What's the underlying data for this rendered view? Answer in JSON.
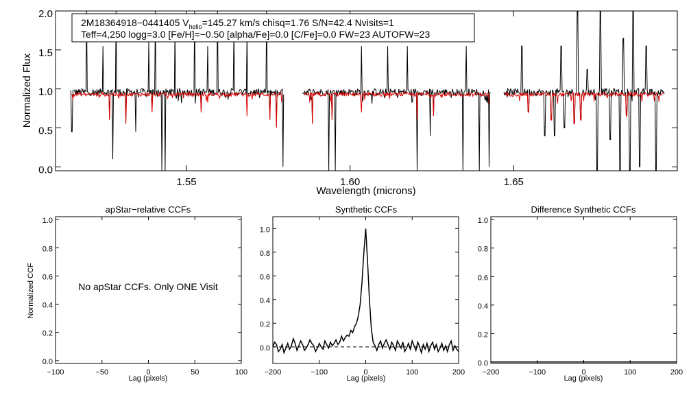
{
  "chart_data": [
    {
      "type": "line",
      "id": "spectrum",
      "xlabel": "Wavelength (microns)",
      "ylabel": "Normalized Flux",
      "xlim": [
        1.51,
        1.7
      ],
      "ylim": [
        -0.05,
        2.0
      ],
      "xticks": [
        "1.55",
        "1.60",
        "1.65"
      ],
      "xtick_values": [
        1.55,
        1.6,
        1.65
      ],
      "yticks": [
        "0.0",
        "0.5",
        "1.0",
        "1.5",
        "2.0"
      ],
      "ytick_values": [
        0.0,
        0.5,
        1.0,
        1.5,
        2.0
      ],
      "info": {
        "line1_pre": "2M18364918−0441405  V",
        "line1_sub": "helio",
        "line1_post": "=145.27 km/s  chisq=1.76  S/N=42.4  Nvisits=1",
        "line2": "Teff=4,250 logg=3.0 [Fe/H]=−0.50 [alpha/Fe]=0.0 [C/Fe]=0.0 FW=23 AUTOFW=23"
      },
      "chips": [
        [
          1.5145,
          1.58
        ],
        [
          1.5855,
          1.643
        ],
        [
          1.647,
          1.696
        ]
      ],
      "observed_level": 0.96,
      "model_level": 0.93,
      "series": [
        {
          "color": "#000000"
        },
        {
          "color": "#dd0000"
        }
      ],
      "spikes_up": [
        [
          1.5195,
          2.0
        ],
        [
          1.5245,
          1.55
        ],
        [
          1.5285,
          2.0
        ],
        [
          1.5345,
          2.0
        ],
        [
          1.5385,
          1.6
        ],
        [
          1.5405,
          2.0
        ],
        [
          1.5465,
          1.75
        ],
        [
          1.5525,
          2.0
        ],
        [
          1.5565,
          1.55
        ],
        [
          1.5595,
          2.0
        ],
        [
          1.5645,
          1.75
        ],
        [
          1.5685,
          1.7
        ],
        [
          1.5745,
          2.0
        ],
        [
          1.5935,
          1.55
        ],
        [
          1.6035,
          1.55
        ],
        [
          1.6115,
          1.55
        ],
        [
          1.6175,
          1.55
        ],
        [
          1.6245,
          1.6
        ],
        [
          1.6355,
          1.55
        ],
        [
          1.6525,
          1.55
        ],
        [
          1.6595,
          1.7
        ],
        [
          1.6645,
          1.55
        ],
        [
          1.6695,
          2.0
        ],
        [
          1.6725,
          1.25
        ],
        [
          1.6765,
          2.0
        ],
        [
          1.6835,
          1.65
        ],
        [
          1.6865,
          2.0
        ],
        [
          1.6905,
          1.55
        ],
        [
          1.6935,
          1.6
        ]
      ],
      "spikes_down": [
        [
          1.515,
          0.45
        ],
        [
          1.5275,
          0.1
        ],
        [
          1.5345,
          0.45
        ],
        [
          1.5425,
          -0.05
        ],
        [
          1.5435,
          -0.05
        ],
        [
          1.5795,
          0.0
        ],
        [
          1.5935,
          -0.05
        ],
        [
          1.5955,
          -0.05
        ],
        [
          1.6205,
          -0.05
        ],
        [
          1.6245,
          0.4
        ],
        [
          1.6345,
          -0.05
        ],
        [
          1.6395,
          -0.05
        ],
        [
          1.6425,
          0.0
        ],
        [
          1.6595,
          0.4
        ],
        [
          1.6625,
          0.4
        ],
        [
          1.6655,
          0.5
        ],
        [
          1.6755,
          -0.05
        ],
        [
          1.6795,
          0.35
        ],
        [
          1.6825,
          -0.05
        ],
        [
          1.6855,
          -0.05
        ],
        [
          1.6885,
          0.0
        ],
        [
          1.6935,
          -0.05
        ]
      ],
      "model_dips": [
        [
          1.5265,
          0.6
        ],
        [
          1.5315,
          0.55
        ],
        [
          1.5395,
          0.7
        ],
        [
          1.5545,
          0.7
        ],
        [
          1.5685,
          0.65
        ],
        [
          1.5755,
          0.6
        ],
        [
          1.5775,
          0.5
        ],
        [
          1.5885,
          0.55
        ],
        [
          1.5945,
          0.6
        ],
        [
          1.6035,
          0.7
        ],
        [
          1.6205,
          0.6
        ],
        [
          1.6255,
          0.65
        ],
        [
          1.6545,
          0.7
        ],
        [
          1.6615,
          0.6
        ],
        [
          1.6685,
          0.55
        ],
        [
          1.6705,
          0.6
        ],
        [
          1.6845,
          0.65
        ]
      ]
    },
    {
      "type": "line",
      "id": "apstar",
      "title": "apStar−relative CCFs",
      "xlabel": "Lag (pixels)",
      "ylabel": "Normalized CCF",
      "xlim": [
        -100,
        100
      ],
      "ylim": [
        -0.02,
        1.02
      ],
      "xticks": [
        "−100",
        "−50",
        "0",
        "50",
        "100"
      ],
      "xtick_values": [
        -100,
        -50,
        0,
        50,
        100
      ],
      "yticks": [
        "0.0",
        "0.2",
        "0.4",
        "0.6",
        "0.8",
        "1.0"
      ],
      "ytick_values": [
        0.0,
        0.2,
        0.4,
        0.6,
        0.8,
        1.0
      ],
      "note": "No apStar CCFs.  Only ONE Visit"
    },
    {
      "type": "line",
      "id": "synthetic",
      "title": "Synthetic CCFs",
      "xlabel": "Lag (pixels)",
      "xlim": [
        -200,
        200
      ],
      "ylim": [
        -0.14,
        1.1
      ],
      "xticks": [
        "−200",
        "−100",
        "0",
        "100",
        "200"
      ],
      "xtick_values": [
        -200,
        -100,
        0,
        100,
        200
      ],
      "yticks": [
        "0.0",
        "0.2",
        "0.4",
        "0.6",
        "0.8",
        "1.0"
      ],
      "ytick_values": [
        0.0,
        0.2,
        0.4,
        0.6,
        0.8,
        1.0
      ],
      "baseline": 0.0,
      "series": [
        {
          "x": [
            -200,
            -196,
            -192,
            -188,
            -184,
            -180,
            -176,
            -172,
            -168,
            -164,
            -160,
            -156,
            -152,
            -148,
            -144,
            -140,
            -136,
            -132,
            -128,
            -124,
            -120,
            -116,
            -112,
            -108,
            -104,
            -100,
            -96,
            -92,
            -88,
            -84,
            -80,
            -76,
            -72,
            -68,
            -64,
            -60,
            -56,
            -52,
            -48,
            -44,
            -40,
            -36,
            -32,
            -28,
            -24,
            -20,
            -16,
            -12,
            -8,
            -4,
            0,
            4,
            8,
            12,
            16,
            20,
            24,
            28,
            32,
            36,
            40,
            44,
            48,
            52,
            56,
            60,
            64,
            68,
            72,
            76,
            80,
            84,
            88,
            92,
            96,
            100,
            104,
            108,
            112,
            116,
            120,
            124,
            128,
            132,
            136,
            140,
            144,
            148,
            152,
            156,
            160,
            164,
            168,
            172,
            176,
            180,
            184,
            188,
            192,
            196,
            200
          ],
          "y": [
            0.0,
            0.04,
            0.02,
            -0.04,
            -0.02,
            0.02,
            -0.05,
            -0.01,
            0.03,
            -0.02,
            0.01,
            0.07,
            0.03,
            -0.03,
            0.01,
            0.05,
            0.02,
            -0.03,
            -0.01,
            0.02,
            0.06,
            0.03,
            0.01,
            -0.04,
            -0.01,
            0.03,
            0.0,
            -0.02,
            0.05,
            0.02,
            -0.01,
            0.04,
            0.01,
            0.03,
            0.06,
            0.02,
            0.04,
            0.09,
            0.05,
            0.08,
            0.1,
            0.09,
            0.14,
            0.12,
            0.17,
            0.2,
            0.26,
            0.36,
            0.55,
            0.8,
            1.0,
            0.72,
            0.4,
            0.16,
            0.04,
            0.01,
            -0.03,
            0.02,
            0.05,
            -0.01,
            0.03,
            0.06,
            0.02,
            -0.02,
            0.04,
            0.01,
            -0.03,
            0.05,
            0.02,
            -0.01,
            0.04,
            -0.04,
            -0.01,
            0.03,
            -0.02,
            0.05,
            0.01,
            -0.03,
            0.04,
            0.0,
            -0.05,
            0.02,
            -0.02,
            0.03,
            -0.04,
            0.01,
            0.04,
            -0.02,
            0.02,
            -0.04,
            -0.01,
            0.03,
            -0.03,
            0.01,
            -0.04,
            0.02,
            0.05,
            -0.03,
            0.01,
            -0.02,
            -0.04
          ]
        }
      ]
    },
    {
      "type": "line",
      "id": "difference",
      "title": "Difference Synthetic CCFs",
      "xlabel": "Lag (pixels)",
      "xlim": [
        -200,
        200
      ],
      "ylim": [
        -0.01,
        1.02
      ],
      "xticks": [
        "−200",
        "−100",
        "0",
        "100",
        "200"
      ],
      "xtick_values": [
        -200,
        -100,
        0,
        100,
        200
      ],
      "yticks": [
        "0.0",
        "0.2",
        "0.4",
        "0.6",
        "0.8",
        "1.0"
      ],
      "ytick_values": [
        0.0,
        0.2,
        0.4,
        0.6,
        0.8,
        1.0
      ],
      "series": [
        {
          "x": [
            -200,
            200
          ],
          "y": [
            0.0,
            0.0
          ]
        }
      ]
    }
  ]
}
